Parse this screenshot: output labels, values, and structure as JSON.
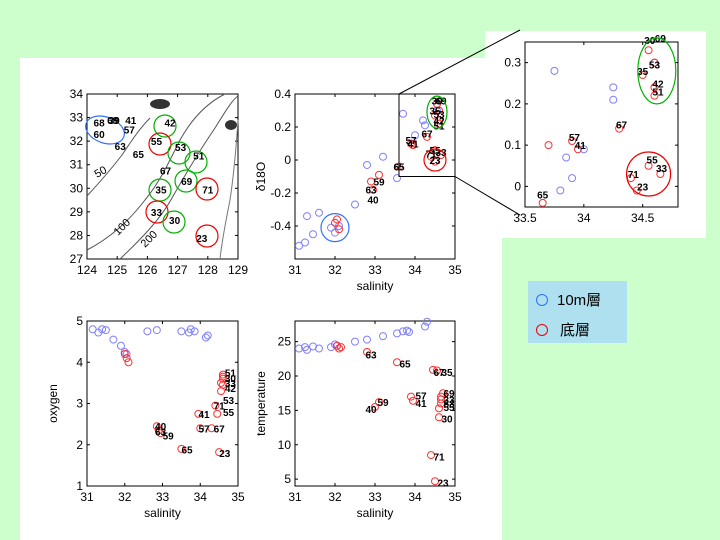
{
  "colors": {
    "background": "#ccffcc",
    "surface": "#8080ff",
    "bottom": "#ff3030",
    "green_ring": "#00b000",
    "blue_ring": "#3070ff",
    "red_ring": "#ee0000",
    "legend_bg": "#aee0f0"
  },
  "legend": {
    "surface_label": "10m層",
    "bottom_label": "底層"
  },
  "map": {
    "xticks": [
      "124",
      "125",
      "126",
      "127",
      "128",
      "129"
    ],
    "yticks": [
      "27",
      "28",
      "29",
      "30",
      "31",
      "32",
      "33",
      "34"
    ],
    "contours": [
      "50",
      "100",
      "200"
    ],
    "stations": [
      {
        "id": "68",
        "lon": 124.4,
        "lat": 32.8
      },
      {
        "id": "69",
        "lon": 124.85,
        "lat": 32.9
      },
      {
        "id": "39",
        "lon": 124.9,
        "lat": 32.9
      },
      {
        "id": "41",
        "lon": 125.45,
        "lat": 32.9
      },
      {
        "id": "42",
        "lon": 126.75,
        "lat": 32.8
      },
      {
        "id": "60",
        "lon": 124.4,
        "lat": 32.3
      },
      {
        "id": "57",
        "lon": 125.4,
        "lat": 32.5
      },
      {
        "id": "55",
        "lon": 126.3,
        "lat": 32.0
      },
      {
        "id": "63",
        "lon": 125.1,
        "lat": 31.8
      },
      {
        "id": "53",
        "lon": 127.1,
        "lat": 31.75
      },
      {
        "id": "65",
        "lon": 125.7,
        "lat": 31.45
      },
      {
        "id": "51",
        "lon": 127.7,
        "lat": 31.4
      },
      {
        "id": "67",
        "lon": 126.6,
        "lat": 30.75
      },
      {
        "id": "69",
        "lon": 127.3,
        "lat": 30.3
      },
      {
        "id": "35",
        "lon": 126.45,
        "lat": 29.95
      },
      {
        "id": "71",
        "lon": 128.0,
        "lat": 29.95
      },
      {
        "id": "33",
        "lon": 126.3,
        "lat": 29.0
      },
      {
        "id": "30",
        "lon": 126.9,
        "lat": 28.65
      },
      {
        "id": "23",
        "lon": 127.8,
        "lat": 27.9
      }
    ]
  },
  "chart_data": [
    {
      "type": "scatter",
      "title": "",
      "xlabel": "salinity",
      "ylabel": "δ18O",
      "xlim": [
        31,
        35
      ],
      "ylim": [
        -0.6,
        0.4
      ],
      "xticks": [
        "31",
        "32",
        "33",
        "34",
        "35"
      ],
      "yticks": [
        "-0.4",
        "-0.2",
        "0",
        "0.2",
        "0.4"
      ],
      "series": [
        {
          "name": "10m層",
          "points": [
            [
              31.1,
              -0.52
            ],
            [
              31.25,
              -0.5
            ],
            [
              31.3,
              -0.34
            ],
            [
              31.45,
              -0.45
            ],
            [
              31.6,
              -0.32
            ],
            [
              31.9,
              -0.41
            ],
            [
              32.0,
              -0.44
            ],
            [
              32.1,
              -0.4
            ],
            [
              32.5,
              -0.27
            ],
            [
              32.8,
              -0.03
            ],
            [
              33.2,
              0.02
            ],
            [
              33.55,
              -0.11
            ],
            [
              33.7,
              0.28
            ],
            [
              34.0,
              0.15
            ],
            [
              34.2,
              0.24
            ],
            [
              34.25,
              0.21
            ],
            [
              34.55,
              0.3
            ]
          ],
          "labels": []
        },
        {
          "name": "底層",
          "points": [
            [
              32.0,
              -0.38
            ],
            [
              32.05,
              -0.36
            ],
            [
              32.1,
              -0.42
            ],
            [
              32.9,
              -0.13
            ],
            [
              32.95,
              -0.18
            ],
            [
              33.1,
              -0.09
            ],
            [
              33.6,
              -0.04
            ],
            [
              33.9,
              0.1
            ],
            [
              33.95,
              0.09
            ],
            [
              34.3,
              0.14
            ],
            [
              34.4,
              0.02
            ],
            [
              34.5,
              -0.01
            ],
            [
              34.5,
              0.06
            ],
            [
              34.5,
              0.27
            ],
            [
              34.55,
              0.34
            ],
            [
              34.6,
              0.3
            ],
            [
              34.6,
              0.22
            ],
            [
              34.6,
              0.24
            ],
            [
              34.65,
              0.03
            ]
          ],
          "labels": [
            {
              "t": "59",
              "x": 33.1,
              "y": -0.13
            },
            {
              "t": "63",
              "x": 32.9,
              "y": -0.18
            },
            {
              "t": "40",
              "x": 32.95,
              "y": -0.24
            },
            {
              "t": "65",
              "x": 33.6,
              "y": -0.04
            },
            {
              "t": "57",
              "x": 33.9,
              "y": 0.12
            },
            {
              "t": "41",
              "x": 33.95,
              "y": 0.1
            },
            {
              "t": "67",
              "x": 34.3,
              "y": 0.16
            },
            {
              "t": "71",
              "x": 34.4,
              "y": 0.04
            },
            {
              "t": "23",
              "x": 34.5,
              "y": 0.0
            },
            {
              "t": "55",
              "x": 34.5,
              "y": 0.06
            },
            {
              "t": "33",
              "x": 34.65,
              "y": 0.05
            },
            {
              "t": "35",
              "x": 34.5,
              "y": 0.3
            },
            {
              "t": "30",
              "x": 34.55,
              "y": 0.36
            },
            {
              "t": "69",
              "x": 34.65,
              "y": 0.36
            },
            {
              "t": "53",
              "x": 34.6,
              "y": 0.28
            },
            {
              "t": "42",
              "x": 34.6,
              "y": 0.24
            },
            {
              "t": "51",
              "x": 34.6,
              "y": 0.21
            }
          ]
        }
      ]
    },
    {
      "type": "scatter",
      "title": "",
      "xlabel": "",
      "ylabel": "",
      "xlim": [
        33.5,
        34.8
      ],
      "ylim": [
        -0.05,
        0.35
      ],
      "xticks": [
        "33.5",
        "34",
        "34.5"
      ],
      "yticks": [
        "0",
        "0.1",
        "0.2",
        "0.3"
      ],
      "series": [
        {
          "name": "10m層",
          "points": [
            [
              33.75,
              0.28
            ],
            [
              33.8,
              -0.01
            ],
            [
              33.9,
              0.02
            ],
            [
              33.85,
              0.07
            ],
            [
              34.0,
              0.09
            ],
            [
              34.25,
              0.24
            ],
            [
              34.25,
              0.21
            ],
            [
              34.6,
              0.3
            ]
          ],
          "labels": []
        },
        {
          "name": "底層",
          "points": [
            [
              33.7,
              0.1
            ],
            [
              33.65,
              -0.04
            ],
            [
              33.9,
              0.11
            ],
            [
              33.95,
              0.09
            ],
            [
              34.3,
              0.14
            ],
            [
              34.4,
              0.02
            ],
            [
              34.45,
              -0.01
            ],
            [
              34.5,
              0.27
            ],
            [
              34.55,
              0.33
            ],
            [
              34.6,
              0.3
            ],
            [
              34.6,
              0.22
            ],
            [
              34.6,
              0.24
            ],
            [
              34.65,
              0.03
            ],
            [
              34.55,
              0.05
            ]
          ],
          "labels": [
            {
              "t": "65",
              "x": 33.65,
              "y": -0.02
            },
            {
              "t": "57",
              "x": 33.92,
              "y": 0.12
            },
            {
              "t": "41",
              "x": 33.97,
              "y": 0.1
            },
            {
              "t": "67",
              "x": 34.32,
              "y": 0.15
            },
            {
              "t": "71",
              "x": 34.42,
              "y": 0.03
            },
            {
              "t": "23",
              "x": 34.5,
              "y": 0.0
            },
            {
              "t": "55",
              "x": 34.58,
              "y": 0.065
            },
            {
              "t": "33",
              "x": 34.66,
              "y": 0.045
            },
            {
              "t": "35",
              "x": 34.5,
              "y": 0.28
            },
            {
              "t": "30",
              "x": 34.56,
              "y": 0.355
            },
            {
              "t": "69",
              "x": 34.65,
              "y": 0.36
            },
            {
              "t": "53",
              "x": 34.6,
              "y": 0.295
            },
            {
              "t": "42",
              "x": 34.63,
              "y": 0.25
            },
            {
              "t": "51",
              "x": 34.63,
              "y": 0.23
            }
          ]
        }
      ]
    },
    {
      "type": "scatter",
      "title": "",
      "xlabel": "salinity",
      "ylabel": "oxygen",
      "xlim": [
        31,
        35
      ],
      "ylim": [
        1,
        5
      ],
      "xticks": [
        "31",
        "32",
        "33",
        "34",
        "35"
      ],
      "yticks": [
        "1",
        "2",
        "3",
        "4",
        "5"
      ],
      "series": [
        {
          "name": "10m層",
          "points": [
            [
              31.15,
              4.8
            ],
            [
              31.3,
              4.72
            ],
            [
              31.4,
              4.8
            ],
            [
              31.5,
              4.78
            ],
            [
              31.7,
              4.55
            ],
            [
              31.9,
              4.4
            ],
            [
              32.0,
              4.25
            ],
            [
              32.05,
              4.2
            ],
            [
              32.6,
              4.75
            ],
            [
              32.85,
              4.78
            ],
            [
              33.5,
              4.75
            ],
            [
              33.7,
              4.72
            ],
            [
              33.75,
              4.8
            ],
            [
              33.85,
              4.75
            ],
            [
              34.15,
              4.6
            ],
            [
              34.2,
              4.65
            ]
          ],
          "labels": []
        },
        {
          "name": "底層",
          "points": [
            [
              32.0,
              4.2
            ],
            [
              32.05,
              4.1
            ],
            [
              32.1,
              4.0
            ],
            [
              32.85,
              2.45
            ],
            [
              32.9,
              2.35
            ],
            [
              32.95,
              2.28
            ],
            [
              33.5,
              1.9
            ],
            [
              33.95,
              2.75
            ],
            [
              34.0,
              2.4
            ],
            [
              34.3,
              2.4
            ],
            [
              34.4,
              2.95
            ],
            [
              34.45,
              2.75
            ],
            [
              34.5,
              1.82
            ],
            [
              34.55,
              3.3
            ],
            [
              34.55,
              3.5
            ],
            [
              34.6,
              3.6
            ],
            [
              34.6,
              3.7
            ],
            [
              34.6,
              3.65
            ],
            [
              34.6,
              3.45
            ]
          ],
          "labels": [
            {
              "t": "40",
              "x": 32.95,
              "y": 2.45
            },
            {
              "t": "63",
              "x": 32.95,
              "y": 2.32
            },
            {
              "t": "59",
              "x": 33.15,
              "y": 2.22
            },
            {
              "t": "65",
              "x": 33.65,
              "y": 1.88
            },
            {
              "t": "41",
              "x": 34.1,
              "y": 2.75
            },
            {
              "t": "57",
              "x": 34.1,
              "y": 2.4
            },
            {
              "t": "67",
              "x": 34.5,
              "y": 2.4
            },
            {
              "t": "71",
              "x": 34.5,
              "y": 2.95
            },
            {
              "t": "23",
              "x": 34.65,
              "y": 1.8
            },
            {
              "t": "53",
              "x": 34.75,
              "y": 3.08
            },
            {
              "t": "55",
              "x": 34.75,
              "y": 2.8
            },
            {
              "t": "51",
              "x": 34.8,
              "y": 3.75
            },
            {
              "t": "30",
              "x": 34.8,
              "y": 3.62
            },
            {
              "t": "33",
              "x": 34.8,
              "y": 3.5
            },
            {
              "t": "42",
              "x": 34.8,
              "y": 3.38
            }
          ]
        }
      ]
    },
    {
      "type": "scatter",
      "title": "",
      "xlabel": "salinity",
      "ylabel": "temperature",
      "xlim": [
        31,
        35
      ],
      "ylim": [
        4,
        28
      ],
      "xticks": [
        "31",
        "32",
        "33",
        "34",
        "35"
      ],
      "yticks": [
        "5",
        "10",
        "15",
        "20",
        "25"
      ],
      "series": [
        {
          "name": "10m層",
          "points": [
            [
              31.1,
              24.0
            ],
            [
              31.25,
              24.2
            ],
            [
              31.3,
              23.8
            ],
            [
              31.45,
              24.3
            ],
            [
              31.6,
              24.0
            ],
            [
              31.9,
              24.2
            ],
            [
              32.0,
              24.6
            ],
            [
              32.05,
              24.4
            ],
            [
              32.5,
              25.0
            ],
            [
              32.8,
              25.3
            ],
            [
              33.2,
              25.8
            ],
            [
              33.55,
              26.2
            ],
            [
              33.7,
              26.5
            ],
            [
              33.8,
              26.6
            ],
            [
              33.85,
              26.4
            ],
            [
              34.25,
              27.2
            ],
            [
              34.3,
              27.9
            ]
          ],
          "labels": []
        },
        {
          "name": "底層",
          "points": [
            [
              32.05,
              24.4
            ],
            [
              32.1,
              24.0
            ],
            [
              32.15,
              24.2
            ],
            [
              32.8,
              23.5
            ],
            [
              33.0,
              15.5
            ],
            [
              33.1,
              16.2
            ],
            [
              33.55,
              22.0
            ],
            [
              33.9,
              17.0
            ],
            [
              33.95,
              16.4
            ],
            [
              34.4,
              8.5
            ],
            [
              34.45,
              20.9
            ],
            [
              34.5,
              4.7
            ],
            [
              34.55,
              20.8
            ],
            [
              34.6,
              14.0
            ],
            [
              34.6,
              15.3
            ],
            [
              34.65,
              16.0
            ],
            [
              34.65,
              16.6
            ],
            [
              34.65,
              17.0
            ],
            [
              34.7,
              17.5
            ]
          ],
          "labels": [
            {
              "t": "63",
              "x": 32.9,
              "y": 23.1
            },
            {
              "t": "40",
              "x": 32.9,
              "y": 15.2
            },
            {
              "t": "59",
              "x": 33.2,
              "y": 16.2
            },
            {
              "t": "65",
              "x": 33.75,
              "y": 21.8
            },
            {
              "t": "57",
              "x": 34.15,
              "y": 17.2
            },
            {
              "t": "41",
              "x": 34.15,
              "y": 16.1
            },
            {
              "t": "67",
              "x": 34.6,
              "y": 20.6
            },
            {
              "t": "35",
              "x": 34.8,
              "y": 20.6
            },
            {
              "t": "71",
              "x": 34.6,
              "y": 8.3
            },
            {
              "t": "23",
              "x": 34.7,
              "y": 4.5
            },
            {
              "t": "30",
              "x": 34.8,
              "y": 13.8
            },
            {
              "t": "69",
              "x": 34.85,
              "y": 17.5
            },
            {
              "t": "33",
              "x": 34.85,
              "y": 16.6
            },
            {
              "t": "53",
              "x": 34.85,
              "y": 16.0
            },
            {
              "t": "55",
              "x": 34.85,
              "y": 15.5
            }
          ]
        }
      ]
    }
  ]
}
